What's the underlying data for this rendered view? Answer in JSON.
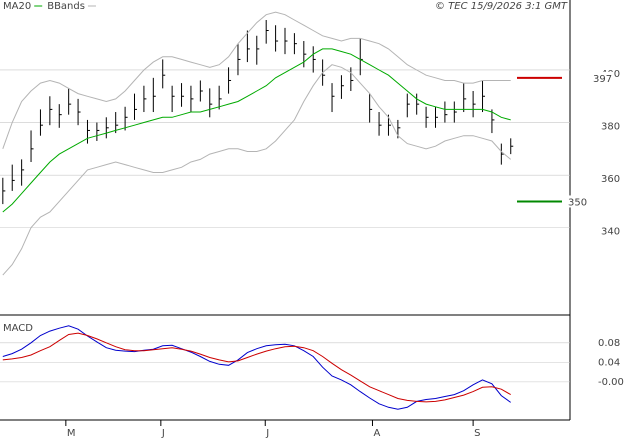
{
  "chart_data": [
    {
      "type": "ohlc",
      "legend": "top-left",
      "copyright": "© TEC 15/9/2026 3:1 GMT",
      "xlim": [
        -0.3,
        60.3
      ],
      "ylim": [
        307.2,
        426.6
      ],
      "yticks": [
        340,
        360,
        380,
        400
      ],
      "grid": true,
      "levels": [
        {
          "value": 397,
          "color": "#cc0000"
        },
        {
          "value": 350,
          "color": "#008800"
        }
      ],
      "series": [
        {
          "kind": "bars",
          "color": "#000000",
          "high": [
            359,
            364,
            366,
            377,
            385,
            390,
            387,
            393,
            389,
            381,
            380,
            382,
            384,
            386,
            391,
            394,
            397,
            404,
            394,
            395,
            394,
            396,
            393,
            394,
            401,
            410,
            415,
            413,
            419,
            417,
            416,
            414,
            411,
            409,
            404,
            395,
            398,
            401,
            412,
            391,
            384,
            383,
            381,
            391,
            391,
            386,
            386,
            388,
            388,
            395,
            392,
            396,
            385,
            372,
            374
          ],
          "low": [
            349,
            354,
            356,
            365,
            375,
            379,
            378,
            383,
            379,
            372,
            373,
            374,
            376,
            377,
            381,
            384,
            384,
            393,
            384,
            386,
            384,
            388,
            382,
            385,
            391,
            398,
            403,
            402,
            410,
            407,
            406,
            406,
            401,
            399,
            394,
            384,
            389,
            392,
            398,
            380,
            375,
            375,
            374,
            382,
            383,
            378,
            378,
            380,
            380,
            384,
            382,
            384,
            376,
            364,
            368
          ],
          "close": [
            354,
            358,
            362,
            370,
            379,
            385,
            383,
            387,
            384,
            377,
            377,
            378,
            379,
            382,
            385,
            389,
            390,
            398,
            390,
            390,
            389,
            392,
            387,
            389,
            396,
            404,
            408,
            408,
            415,
            411,
            411,
            410,
            406,
            404,
            398,
            390,
            394,
            396,
            404,
            385,
            379,
            379,
            378,
            387,
            387,
            382,
            382,
            383,
            384,
            389,
            387,
            390,
            381,
            368,
            371
          ]
        },
        {
          "kind": "line",
          "name": "MA20",
          "color": "#00aa00",
          "values": [
            346,
            349,
            353,
            357,
            361,
            365,
            368,
            370,
            372,
            374,
            375,
            376,
            377,
            378,
            379,
            380,
            381,
            382,
            382,
            383,
            384,
            384,
            385,
            386,
            387,
            388,
            390,
            392,
            394,
            397,
            399,
            401,
            403,
            406,
            408,
            408,
            407,
            406,
            404,
            402,
            400,
            398,
            395,
            392,
            389,
            387,
            386,
            385,
            385,
            385,
            385,
            385,
            384,
            382,
            381
          ]
        },
        {
          "kind": "band",
          "name": "BBands",
          "color": "#b4b4b4",
          "upper": [
            370,
            380,
            388,
            392,
            395,
            396,
            395,
            393,
            391,
            390,
            389,
            388,
            389,
            392,
            396,
            400,
            403,
            405,
            405,
            404,
            403,
            402,
            401,
            402,
            405,
            410,
            414,
            418,
            421,
            422,
            421,
            419,
            417,
            415,
            413,
            412,
            411,
            412,
            412,
            411,
            410,
            408,
            405,
            402,
            400,
            398,
            397,
            396,
            396,
            395,
            395,
            396,
            396,
            396,
            396
          ],
          "lower": [
            322,
            326,
            332,
            340,
            344,
            346,
            350,
            354,
            358,
            362,
            363,
            364,
            365,
            364,
            363,
            362,
            361,
            361,
            362,
            363,
            365,
            366,
            368,
            369,
            370,
            370,
            369,
            369,
            370,
            373,
            377,
            381,
            388,
            394,
            399,
            402,
            401,
            399,
            395,
            391,
            386,
            382,
            375,
            372,
            371,
            370,
            371,
            373,
            374,
            375,
            375,
            374,
            373,
            369,
            366
          ]
        }
      ]
    },
    {
      "type": "line",
      "title": "MACD",
      "xlim": [
        -0.3,
        60.3
      ],
      "ylim": [
        -0.074,
        0.135
      ],
      "yticks": [
        {
          "value": 0,
          "label": "-0.00"
        },
        0.04,
        0.08
      ],
      "xticks": [
        {
          "value": 6.7,
          "label": "M"
        },
        {
          "value": 16.8,
          "label": "J"
        },
        {
          "value": 27.9,
          "label": "J"
        },
        {
          "value": 39.3,
          "label": "A"
        },
        {
          "value": 50.0,
          "label": "S"
        }
      ],
      "series": [
        {
          "color": "#0000cc",
          "values": [
            0.052,
            0.058,
            0.067,
            0.08,
            0.095,
            0.104,
            0.11,
            0.115,
            0.108,
            0.094,
            0.082,
            0.07,
            0.065,
            0.063,
            0.062,
            0.065,
            0.067,
            0.074,
            0.075,
            0.068,
            0.061,
            0.052,
            0.042,
            0.036,
            0.034,
            0.045,
            0.06,
            0.068,
            0.074,
            0.076,
            0.077,
            0.074,
            0.064,
            0.052,
            0.03,
            0.012,
            0.004,
            -0.006,
            -0.02,
            -0.033,
            -0.045,
            -0.052,
            -0.056,
            -0.052,
            -0.04,
            -0.036,
            -0.034,
            -0.03,
            -0.026,
            -0.018,
            -0.006,
            0.004,
            -0.004,
            -0.028,
            -0.042
          ]
        },
        {
          "color": "#cc0000",
          "values": [
            0.045,
            0.047,
            0.05,
            0.055,
            0.064,
            0.072,
            0.085,
            0.097,
            0.1,
            0.095,
            0.088,
            0.08,
            0.072,
            0.066,
            0.064,
            0.064,
            0.066,
            0.068,
            0.07,
            0.067,
            0.063,
            0.057,
            0.05,
            0.045,
            0.041,
            0.043,
            0.05,
            0.057,
            0.063,
            0.068,
            0.072,
            0.073,
            0.07,
            0.064,
            0.052,
            0.038,
            0.025,
            0.014,
            0.002,
            -0.01,
            -0.018,
            -0.026,
            -0.034,
            -0.038,
            -0.04,
            -0.041,
            -0.04,
            -0.037,
            -0.032,
            -0.027,
            -0.02,
            -0.011,
            -0.01,
            -0.015,
            -0.026
          ]
        }
      ]
    }
  ]
}
